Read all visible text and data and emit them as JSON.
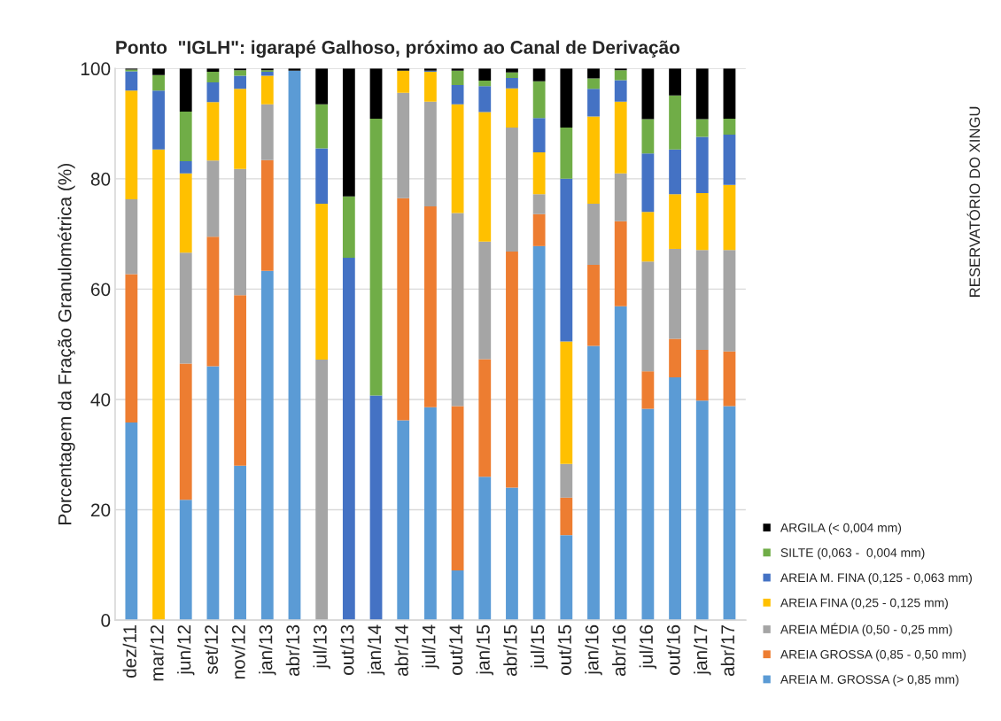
{
  "chart_data": {
    "type": "bar",
    "stacked": true,
    "title": "Ponto  \"IGLH\": igarapé Galhoso, próximo ao Canal de Derivação",
    "ylabel": "Porcentagem da Fração Granulométrica (%)",
    "annotations": [
      "RESERVATÓRIO DO XINGU"
    ],
    "categories": [
      "dez/11",
      "mar/12",
      "jun/12",
      "set/12",
      "nov/12",
      "jan/13",
      "abr/13",
      "jul/13",
      "out/13",
      "jan/14",
      "abr/14",
      "jul/14",
      "out/14",
      "jan/15",
      "abr/15",
      "jul/15",
      "out/15",
      "jan/16",
      "abr/16",
      "jul/16",
      "out/16",
      "jan/17",
      "abr/17"
    ],
    "series": [
      {
        "name": "AREIA M. GROSSA (> 0,85 mm)",
        "color": "#5b9bd5",
        "values": [
          35.8,
          0,
          21.8,
          46,
          28,
          63.3,
          99.6,
          0,
          0,
          0,
          36.2,
          38.6,
          9,
          26,
          24,
          67.8,
          15.4,
          49.7,
          56.9,
          38.3,
          44,
          39.8,
          38.8
        ]
      },
      {
        "name": "AREIA GROSSA (0,85 - 0,50 mm)",
        "color": "#ed7d31",
        "values": [
          26.9,
          0,
          24.7,
          23.5,
          30.9,
          20.1,
          0,
          0,
          0,
          0,
          40.3,
          36.4,
          29.8,
          21.3,
          42.8,
          5.8,
          6.8,
          14.7,
          15.4,
          6.8,
          7,
          9.2,
          9.9
        ]
      },
      {
        "name": "AREIA MÉDIA (0,50 - 0,25 mm)",
        "color": "#a5a5a5",
        "values": [
          13.6,
          0,
          20.1,
          13.8,
          22.9,
          10.1,
          0,
          47.2,
          0,
          0,
          19.1,
          19,
          35,
          21.3,
          22.5,
          3.6,
          6.1,
          11.1,
          8.7,
          19.9,
          16.3,
          18.1,
          18.4
        ]
      },
      {
        "name": "AREIA FINA (0,25 - 0,125 mm)",
        "color": "#ffc000",
        "values": [
          19.7,
          85.3,
          14.4,
          10.6,
          14.5,
          5.2,
          0,
          28.3,
          0,
          0,
          4,
          5.4,
          19.7,
          23.5,
          7.1,
          7.6,
          22.2,
          15.8,
          13,
          9,
          9.9,
          10.3,
          11.8
        ]
      },
      {
        "name": "AREIA M. FINA (0,125 - 0,063 mm)",
        "color": "#4472c4",
        "values": [
          3.5,
          10.7,
          2.2,
          3.6,
          2.4,
          0.7,
          0,
          10,
          65.7,
          40.7,
          0,
          0.2,
          3.5,
          4.7,
          1.9,
          6.2,
          29.5,
          5,
          3.9,
          10.6,
          8.1,
          10.2,
          9.1
        ]
      },
      {
        "name": "SILTE (0,063 -  0,004 mm)",
        "color": "#70ad47",
        "values": [
          0.3,
          2.8,
          9,
          1.9,
          1,
          0.3,
          0,
          8,
          11.1,
          50.2,
          0,
          0,
          2.6,
          1,
          1,
          6.7,
          9.3,
          1.9,
          1.8,
          6.2,
          9.8,
          3.2,
          2.9
        ]
      },
      {
        "name": "ARGILA (< 0,004 mm)",
        "color": "#000000",
        "values": [
          0.2,
          1.2,
          7.8,
          0.6,
          0.3,
          0.3,
          0.4,
          6.5,
          23.2,
          9.1,
          0.4,
          0.4,
          0.4,
          2.2,
          0.7,
          2.3,
          10.7,
          1.8,
          0.3,
          9.2,
          4.9,
          9.2,
          9.1
        ]
      }
    ],
    "ylim": [
      0,
      100
    ],
    "yticks": [
      0,
      20,
      40,
      60,
      80,
      100
    ],
    "grid": "y",
    "legend": "bottom right"
  }
}
